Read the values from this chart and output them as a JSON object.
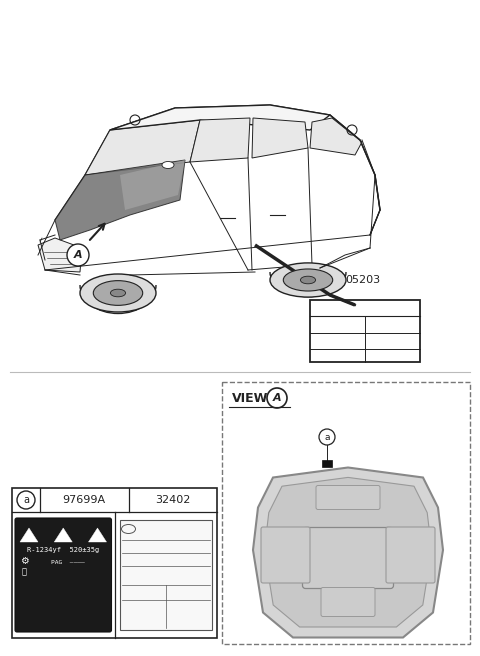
{
  "bg_color": "#ffffff",
  "part_number_label": "05203",
  "circle_A": "A",
  "circle_a": "a",
  "table_col1": "97699A",
  "table_col2": "32402",
  "label_text1": "R-1234yf  520±35g",
  "label_text2": "PAG",
  "line_color": "#222222",
  "gray_light": "#d8d8d8",
  "gray_mid": "#aaaaaa",
  "gray_dark": "#555555",
  "hood_fill": "#888888",
  "dashed_border_color": "#555555",
  "view_label": "VIEW"
}
